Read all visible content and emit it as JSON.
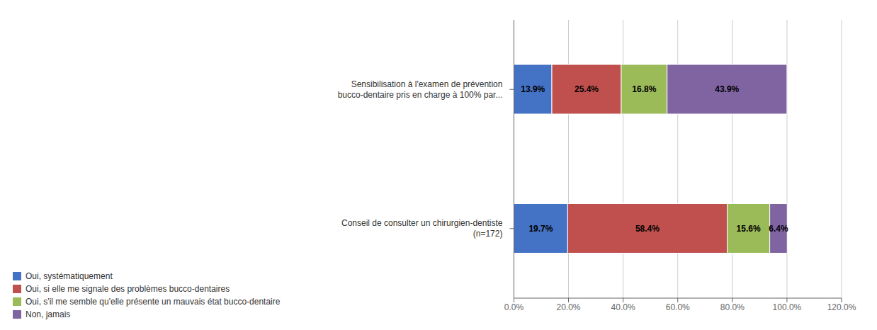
{
  "chart_data": {
    "type": "bar",
    "orientation": "horizontal",
    "stacked": true,
    "data_labels": true,
    "grid": true,
    "legend": "lower left",
    "categories": [
      "Conseil de consulter un chirurgien-dentiste\n(n=172)",
      "Sensibilisation à l'examen de prévention\nbucco-dentaire pris en charge à 100% par..."
    ],
    "series": [
      {
        "name": "Oui, systématiquement",
        "color": "#4472C4",
        "values": [
          19.7,
          13.9
        ],
        "value_labels": [
          "19.7%",
          "13.9%"
        ]
      },
      {
        "name": "Oui, si elle me signale des problèmes bucco-dentaires",
        "color": "#C0504D",
        "values": [
          58.4,
          25.4
        ],
        "value_labels": [
          "58.4%",
          "25.4%"
        ]
      },
      {
        "name": "Oui, s'il me semble qu'elle présente un mauvais état bucco-dentaire",
        "color": "#9BBB59",
        "values": [
          15.6,
          16.8
        ],
        "value_labels": [
          "15.6%",
          "16.8%"
        ]
      },
      {
        "name": "Non, jamais",
        "color": "#8064A2",
        "values": [
          6.4,
          43.9
        ],
        "value_labels": [
          "6.4%",
          "43.9%"
        ]
      }
    ],
    "xlim": [
      0,
      120
    ],
    "xticks": [
      {
        "value": 0,
        "label": "0.0%"
      },
      {
        "value": 20,
        "label": "20.0%"
      },
      {
        "value": 40,
        "label": "40.0%"
      },
      {
        "value": 60,
        "label": "60.0%"
      },
      {
        "value": 80,
        "label": "80.0%"
      },
      {
        "value": 100,
        "label": "100.0%"
      },
      {
        "value": 120,
        "label": "120.0%"
      }
    ]
  }
}
